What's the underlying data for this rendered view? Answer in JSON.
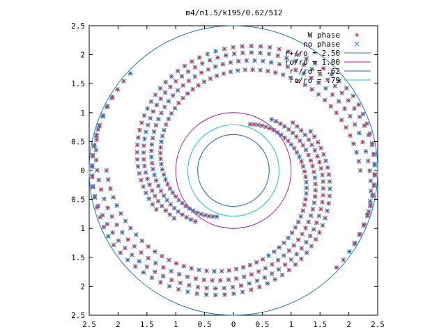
{
  "chart_data": {
    "type": "scatter",
    "title": "m4/n1.5/k195/0.62/512",
    "xlabel": "",
    "ylabel": "",
    "xlim": [
      -2.5,
      2.5
    ],
    "ylim": [
      -2.5,
      2.5
    ],
    "x_ticks": [
      -2.5,
      -2,
      -1.5,
      -1,
      -0.5,
      0,
      0.5,
      1,
      1.5,
      2,
      2.5
    ],
    "y_ticks": [
      -2.5,
      -2,
      -1.5,
      -1,
      -0.5,
      0,
      0.5,
      1,
      1.5,
      2,
      2.5
    ],
    "x_tick_labels": [
      "2.5",
      "2",
      "1.5",
      "1",
      "0.5",
      "0",
      "0.5",
      "1",
      "1.5",
      "2",
      "2.5"
    ],
    "y_tick_labels": [
      "2.5",
      "2",
      "1.5",
      "1",
      "0.5",
      "0",
      "0.5",
      "1",
      "1.5",
      "2",
      "2.5"
    ],
    "grid": false,
    "legend_position": "top-right",
    "series": [
      {
        "name": "W phase",
        "kind": "points",
        "marker": "plus",
        "color": "#e0282c"
      },
      {
        "name": "no phase",
        "kind": "points",
        "marker": "cross",
        "color": "#2a8ee8"
      },
      {
        "name": "r+/ro = 2.50",
        "kind": "circle",
        "radius": 2.5,
        "color": "#1f78b4"
      },
      {
        "name": "ro/ro = 1.00",
        "kind": "circle",
        "radius": 1.0,
        "color": "#a020a0"
      },
      {
        "name": "r-/ro = .62",
        "kind": "circle",
        "radius": 0.62,
        "color": "#1f5fbf"
      },
      {
        "name": "rc/ro = .79",
        "kind": "circle",
        "radius": 0.79,
        "color": "#20c0c8"
      }
    ],
    "spiral_arms": [
      {
        "start_angle_deg": 70,
        "r_start": 0.85,
        "r_end": 2.2,
        "sweep_deg": -250
      },
      {
        "start_angle_deg": 250,
        "r_start": 0.85,
        "r_end": 2.2,
        "sweep_deg": -250
      }
    ]
  }
}
